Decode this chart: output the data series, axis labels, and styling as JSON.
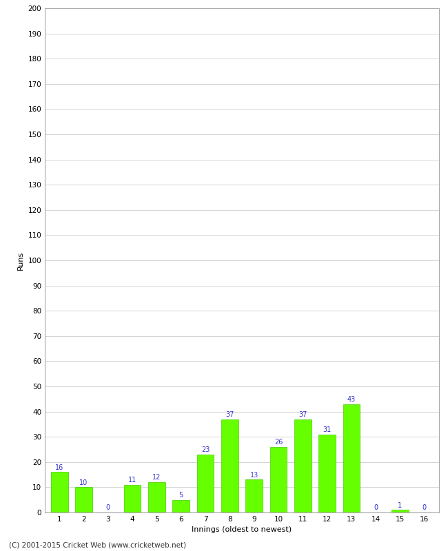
{
  "xlabel": "Innings (oldest to newest)",
  "ylabel": "Runs",
  "categories": [
    "1",
    "2",
    "3",
    "4",
    "5",
    "6",
    "7",
    "8",
    "9",
    "10",
    "11",
    "12",
    "13",
    "14",
    "15",
    "16"
  ],
  "values": [
    16,
    10,
    0,
    11,
    12,
    5,
    23,
    37,
    13,
    26,
    37,
    31,
    43,
    0,
    1,
    0
  ],
  "bar_color": "#66ff00",
  "bar_edge_color": "#44cc00",
  "label_color": "#3333cc",
  "ylim": [
    0,
    200
  ],
  "yticks": [
    0,
    10,
    20,
    30,
    40,
    50,
    60,
    70,
    80,
    90,
    100,
    110,
    120,
    130,
    140,
    150,
    160,
    170,
    180,
    190,
    200
  ],
  "background_color": "#ffffff",
  "grid_color": "#cccccc",
  "footer_text": "(C) 2001-2015 Cricket Web (www.cricketweb.net)",
  "axis_label_fontsize": 8,
  "tick_fontsize": 7.5,
  "label_fontsize": 7,
  "footer_fontsize": 7.5,
  "spine_color": "#aaaaaa"
}
